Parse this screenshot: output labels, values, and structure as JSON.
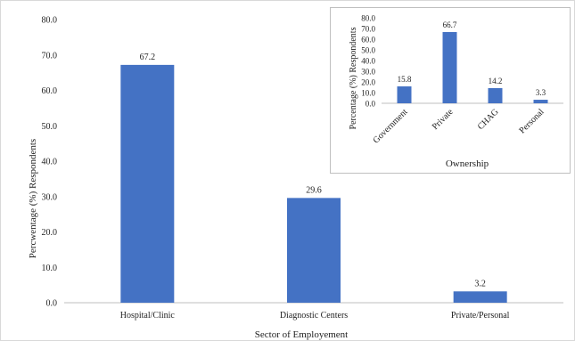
{
  "colors": {
    "bar": "#4472C4",
    "axis": "#bfbfbf",
    "text": "#222222"
  },
  "chart_data": [
    {
      "type": "bar",
      "title": "",
      "xlabel": "Sector of Employement",
      "ylabel": "Percwentage (%) Respondents",
      "ylim": [
        0,
        80
      ],
      "yticks": [
        "0.0",
        "10.0",
        "20.0",
        "30.0",
        "40.0",
        "50.0",
        "60.0",
        "70.0",
        "80.0"
      ],
      "grid": false,
      "categories": [
        "Hospital/Clinic",
        "Diagnostic Centers",
        "Private/Personal"
      ],
      "values": [
        67.2,
        29.6,
        3.2
      ],
      "data_labels": [
        "67.2",
        "29.6",
        "3.2"
      ]
    },
    {
      "type": "bar",
      "title": "",
      "xlabel": "Ownership",
      "ylabel": "Percentage (%) Respondents",
      "ylim": [
        0,
        80
      ],
      "yticks": [
        "0.0",
        "10.0",
        "20.0",
        "30.0",
        "40.0",
        "50.0",
        "60.0",
        "70.0",
        "80.0"
      ],
      "grid": false,
      "categories": [
        "Government",
        "Private",
        "CHAG",
        "Personal"
      ],
      "values": [
        15.8,
        66.7,
        14.2,
        3.3
      ],
      "data_labels": [
        "15.8",
        "66.7",
        "14.2",
        "3.3"
      ]
    }
  ]
}
